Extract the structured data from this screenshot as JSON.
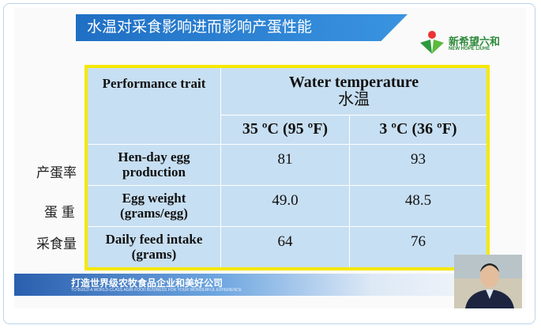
{
  "slide": {
    "title": "水温对采食影响进而影响产蛋性能",
    "logo": {
      "name": "新希望六和",
      "subtitle": "NEW HOPE LIUHE"
    },
    "table": {
      "header": {
        "trait": "Performance trait",
        "group": "Water temperature",
        "group_cn": "水温",
        "columns": [
          "35 ºC (95 ºF)",
          "3 ºC (36 ºF)"
        ]
      },
      "rows": [
        {
          "side_label": "产蛋率",
          "trait": "Hen-day egg production",
          "values": [
            "81",
            "93"
          ]
        },
        {
          "side_label": "蛋 重",
          "trait": "Egg weight (grams/egg)",
          "values": [
            "49.0",
            "48.5"
          ]
        },
        {
          "side_label": "采食量",
          "trait": "Daily feed intake (grams)",
          "values": [
            "64",
            "76"
          ]
        }
      ]
    },
    "footer": {
      "slogan": "打造世界级农牧食品企业和美好公司",
      "slogan_en": "TO BUILD A WORLD-CLASS AGRI-FOOD BUSINESS FOR YOUR WONDERFUL EXPERIENCE"
    }
  }
}
